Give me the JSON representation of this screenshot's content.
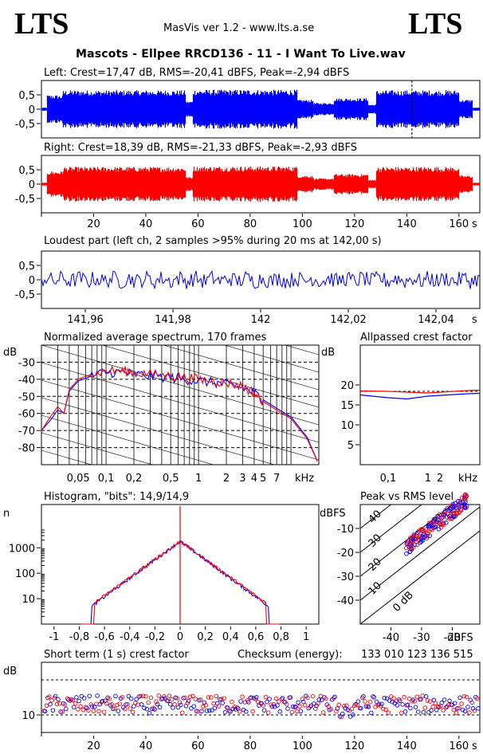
{
  "brand": {
    "left_logo": "LTS",
    "right_logo": "LTS"
  },
  "app_title": "MasVis ver 1.2 - www.lts.a.se",
  "file_title": "Mascots - Ellpee RRCD136 - 11 - I Want To Live.wav",
  "colors": {
    "left": "#0000ff",
    "right": "#ff0000",
    "frame": "#000000"
  },
  "chart_data": [
    {
      "id": "left-waveform",
      "type": "line",
      "title": "Left: Crest=17,47 dB, RMS=-20,41 dBFS, Peak=-2,94 dBFS",
      "series": [
        {
          "values_desc": "waveform",
          "color": "#0000ff"
        }
      ],
      "xlim": [
        0,
        168
      ],
      "ylim": [
        -1,
        1
      ],
      "ytick_labels": [
        "0,5",
        "0",
        "-0,5"
      ],
      "yticks": [
        0.5,
        0,
        -0.5
      ],
      "marker_x": 142
    },
    {
      "id": "right-waveform",
      "type": "line",
      "title": "Right: Crest=18,39 dB, RMS=-21,33 dBFS, Peak=-2,93 dBFS",
      "xlim": [
        0,
        168
      ],
      "ylim": [
        -1,
        1
      ],
      "ytick_labels": [
        "0,5",
        "0",
        "-0,5"
      ],
      "yticks": [
        0.5,
        0,
        -0.5
      ],
      "xticks": [
        20,
        40,
        60,
        80,
        100,
        120,
        140,
        160
      ],
      "xtick_labels": [
        "20",
        "40",
        "60",
        "80",
        "100",
        "120",
        "140",
        "160"
      ],
      "xunit": "s"
    },
    {
      "id": "loudest-part",
      "type": "line",
      "title": "Loudest part (left  ch, 2 samples >95% during 20 ms at 142,00 s)",
      "xlim": [
        141.95,
        142.05
      ],
      "ylim": [
        -1,
        1
      ],
      "ytick_labels": [
        "0,5",
        "0",
        "-0,5"
      ],
      "yticks": [
        0.5,
        0,
        -0.5
      ],
      "xticks": [
        141.96,
        141.98,
        142,
        142.02,
        142.04
      ],
      "xtick_labels": [
        "141,96",
        "141,98",
        "142",
        "142,02",
        "142,04"
      ],
      "xunit": "s"
    },
    {
      "id": "spectrum",
      "type": "line",
      "title": "Normalized average spectrum, 170 frames",
      "ylabel": "dB",
      "ylim": [
        -90,
        -20
      ],
      "ytick_labels": [
        "-30",
        "-40",
        "-50",
        "-60",
        "-70",
        "-80"
      ],
      "yticks": [
        -30,
        -40,
        -50,
        -60,
        -70,
        -80
      ],
      "xtick_labels": [
        "0,05",
        "0,1",
        "0,2",
        "0,5",
        "1",
        "2",
        "3",
        "4",
        "5",
        "7"
      ],
      "xticks": [
        0.05,
        0.1,
        0.2,
        0.5,
        1,
        2,
        3,
        4,
        5,
        7
      ],
      "xunit": "kHz",
      "xscale": "log",
      "series": [
        {
          "color": "#0000ff",
          "x": [
            0.02,
            0.025,
            0.03,
            0.035,
            0.04,
            0.05,
            0.07,
            0.1,
            0.15,
            0.2,
            0.3,
            0.5,
            0.7,
            1,
            1.5,
            2,
            3,
            4,
            5,
            7,
            10,
            15,
            20
          ],
          "y": [
            -70,
            -64,
            -58,
            -60,
            -47,
            -41,
            -38,
            -36,
            -36,
            -37,
            -38,
            -39,
            -40,
            -41,
            -42,
            -43,
            -45,
            -48,
            -52,
            -57,
            -62,
            -74,
            -90
          ]
        },
        {
          "color": "#ff0000",
          "x": [
            0.02,
            0.025,
            0.03,
            0.035,
            0.04,
            0.05,
            0.07,
            0.1,
            0.15,
            0.2,
            0.3,
            0.5,
            0.7,
            1,
            1.5,
            2,
            3,
            4,
            5,
            7,
            10,
            15,
            20
          ],
          "y": [
            -70,
            -62,
            -56,
            -60,
            -46,
            -40,
            -37,
            -35,
            -35,
            -36,
            -37,
            -38,
            -39,
            -40,
            -41,
            -42,
            -44,
            -48,
            -53,
            -58,
            -63,
            -75,
            -90
          ]
        }
      ]
    },
    {
      "id": "crest-factor",
      "type": "line",
      "title": "Allpassed crest factor",
      "ylabel": "dB",
      "ylim": [
        0,
        30
      ],
      "yticks": [
        20,
        15,
        10,
        5
      ],
      "ytick_labels": [
        "20",
        "15",
        "10",
        "5"
      ],
      "xtick_labels": [
        "0,1",
        "1",
        "2",
        "kHz"
      ],
      "series": [
        {
          "color": "#ff0000",
          "x": [
            0.02,
            0.1,
            1,
            10,
            20
          ],
          "y": [
            18.5,
            18.4,
            18.0,
            18.6,
            18.7
          ]
        },
        {
          "color": "#0000ff",
          "x": [
            0.02,
            0.1,
            0.3,
            1,
            10,
            20
          ],
          "y": [
            17.5,
            16.8,
            16.5,
            17.2,
            17.8,
            17.9
          ]
        }
      ],
      "reference_y": 18.4
    },
    {
      "id": "histogram",
      "type": "line",
      "title": "Histogram, \"bits\": 14,9/14,9",
      "ylabel": "n",
      "yscale": "log",
      "ytick_labels": [
        "1000",
        "100",
        "10"
      ],
      "yticks": [
        1000,
        100,
        10
      ],
      "xticks": [
        -1,
        -0.8,
        -0.6,
        -0.4,
        -0.2,
        0,
        0.2,
        0.4,
        0.6,
        0.8,
        1
      ],
      "xtick_labels": [
        "-1",
        "-0,8",
        "-0,6",
        "-0,4",
        "-0,2",
        "0",
        "0,2",
        "0,4",
        "0,6",
        "0,8",
        "1"
      ],
      "xlim": [
        -1.1,
        1.1
      ]
    },
    {
      "id": "peak-vs-rms",
      "type": "scatter",
      "title": "Peak vs RMS level",
      "ylabel": "dBFS",
      "xunit": "dBFS",
      "ytick_labels": [
        "-10",
        "-20",
        "-30",
        "-40"
      ],
      "yticks": [
        -10,
        -20,
        -30,
        -40
      ],
      "xtick_labels": [
        "-40",
        "-30",
        "-20"
      ],
      "xticks": [
        -40,
        -30,
        -20
      ],
      "xlim": [
        -50,
        -11
      ],
      "ylim": [
        -50,
        0
      ],
      "line_labels": [
        "40",
        "30",
        "20",
        "10",
        "0 dB"
      ]
    },
    {
      "id": "short-term-crest",
      "type": "scatter",
      "title": "Short term (1 s) crest factor",
      "checksum_label": "Checksum (energy):",
      "checksum_value": "133 010 123 136 515",
      "ylabel": "dB",
      "yticks": [
        10
      ],
      "ytick_labels": [
        "10"
      ],
      "xticks": [
        20,
        40,
        60,
        80,
        100,
        120,
        140,
        160
      ],
      "xtick_labels": [
        "20",
        "40",
        "60",
        "80",
        "100",
        "120",
        "140",
        "160"
      ],
      "xunit": "s",
      "xlim": [
        0,
        168
      ]
    }
  ]
}
